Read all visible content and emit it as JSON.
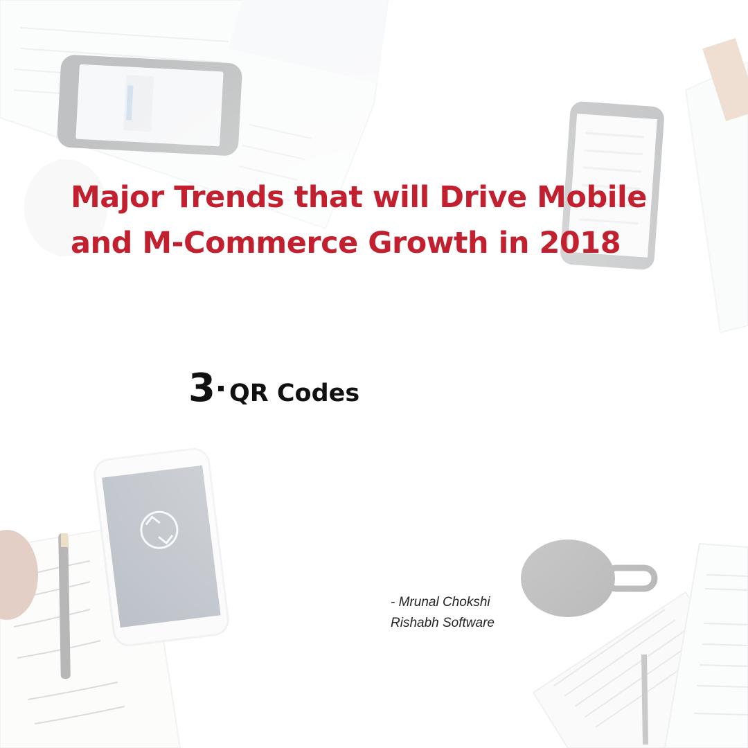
{
  "headline": {
    "line1": "Major Trends that will Drive Mobile",
    "line2": "and M-Commerce Growth in 2018"
  },
  "trend": {
    "number": "3",
    "title": "QR Codes"
  },
  "credit": {
    "author": "- Mrunal Chokshi",
    "company": "Rishabh Software"
  },
  "colors": {
    "headline": "#c3202f",
    "text": "#111111",
    "background": "#ffffff"
  },
  "background_icons": [
    "phone-icon",
    "sync-icon",
    "coffee-mug-icon",
    "notebook-icon",
    "pen-icon",
    "newspaper-icon",
    "document-icon"
  ]
}
